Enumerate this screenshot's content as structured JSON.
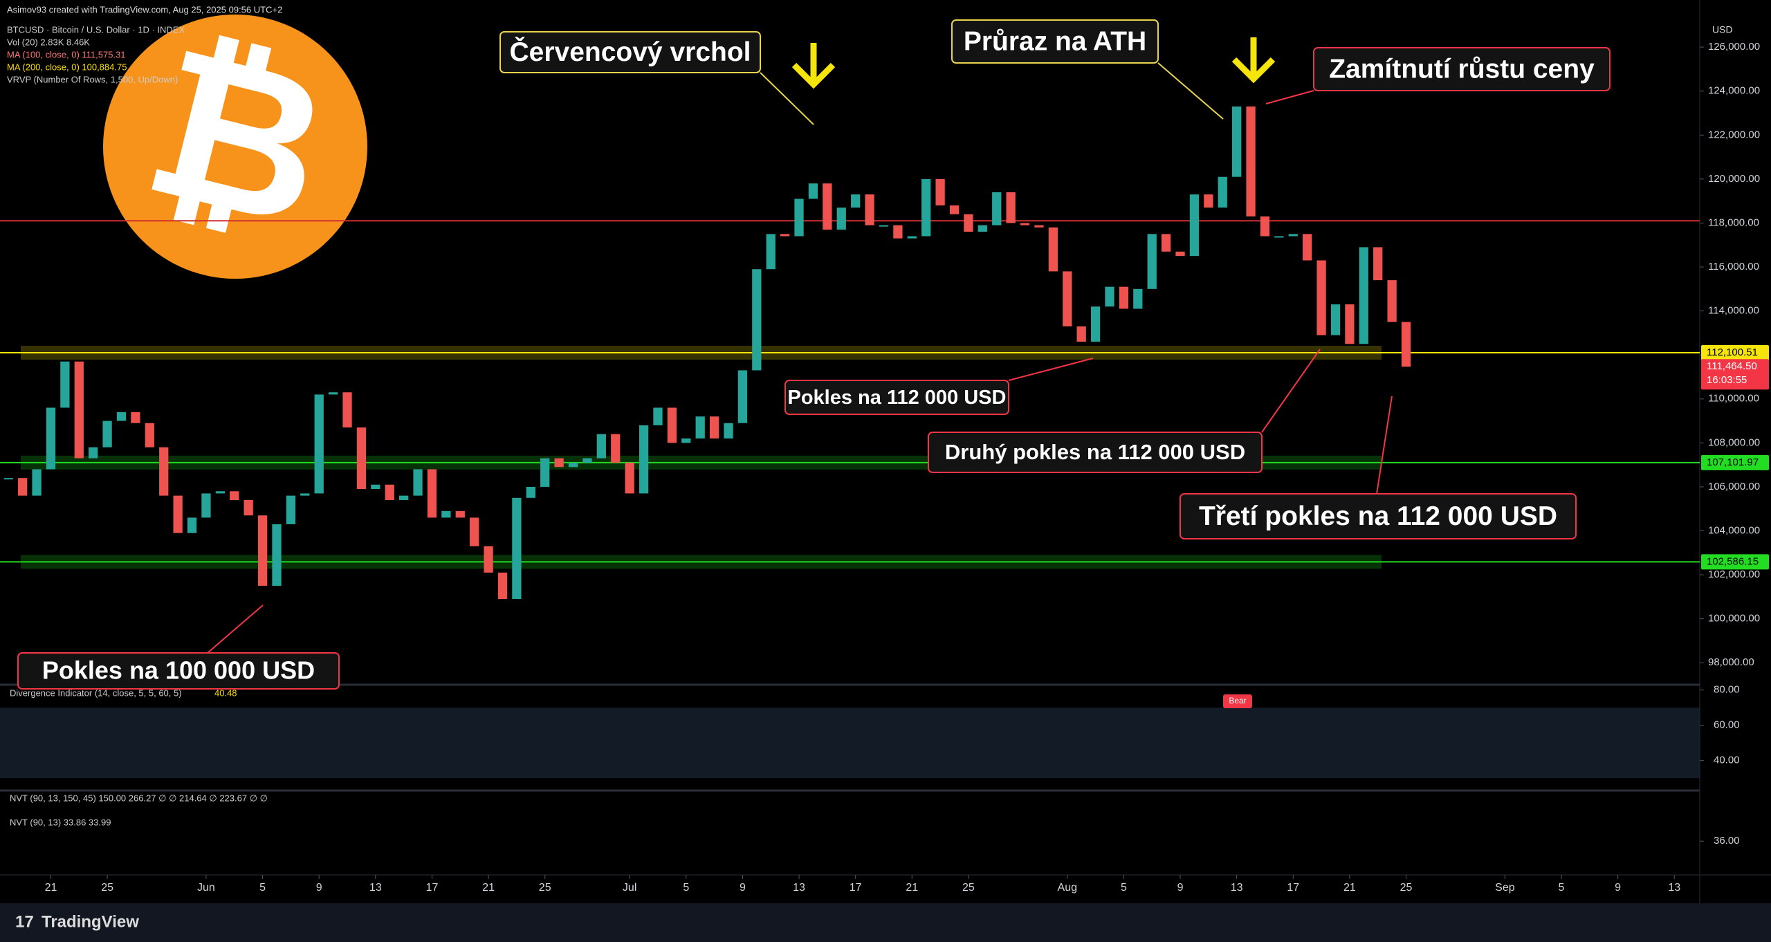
{
  "chart_data": {
    "type": "candlestick",
    "attribution": "Asimov93 created with TradingView.com, Aug 25, 2025 09:56 UTC+2",
    "legend_lines": [
      "BTCUSD · Bitcoin / U.S. Dollar · 1D · INDEX",
      "Vol (20) 2.83K 8.46K",
      "MA (100, close, 0) 111,575.31",
      "MA (200, close, 0) 100,884.75",
      "VRVP (Number Of Rows, 1,500, Up/Down)"
    ],
    "currency": "USD",
    "close": [
      106400,
      105600,
      106800,
      109600,
      111700,
      107300,
      107800,
      109000,
      109400,
      108900,
      107800,
      105600,
      103900,
      104600,
      105700,
      105800,
      105400,
      104700,
      101500,
      104300,
      105600,
      105700,
      110200,
      110300,
      108700,
      105900,
      106100,
      105400,
      105600,
      106800,
      104600,
      104900,
      104600,
      103300,
      102100,
      100900,
      105500,
      106000,
      107300,
      106900,
      107100,
      107300,
      108400,
      107100,
      105700,
      108800,
      109600,
      108000,
      108200,
      109200,
      108200,
      108900,
      111300,
      115900,
      117500,
      117400,
      119100,
      119800,
      117700,
      118700,
      119300,
      117900,
      117900,
      117300,
      117400,
      120000,
      118800,
      118400,
      117600,
      117900,
      119400,
      118000,
      117900,
      117800,
      115800,
      113300,
      112600,
      114200,
      115100,
      114100,
      115000,
      117500,
      116700,
      116500,
      119300,
      118700,
      120100,
      123300,
      118300,
      117400,
      117400,
      117500,
      116300,
      112900,
      114300,
      112500,
      116900,
      115400,
      113500,
      111464.5
    ],
    "up_color": "#26a69a",
    "down_color": "#ef5350",
    "xlim": [
      -0.6,
      119.8
    ],
    "xticks": [
      {
        "value": 3,
        "label": "21"
      },
      {
        "value": 7,
        "label": "25"
      },
      {
        "value": 14,
        "label": "Jun"
      },
      {
        "value": 18,
        "label": "5"
      },
      {
        "value": 22,
        "label": "9"
      },
      {
        "value": 26,
        "label": "13"
      },
      {
        "value": 30,
        "label": "17"
      },
      {
        "value": 34,
        "label": "21"
      },
      {
        "value": 38,
        "label": "25"
      },
      {
        "value": 44,
        "label": "Jul"
      },
      {
        "value": 48,
        "label": "5"
      },
      {
        "value": 52,
        "label": "9"
      },
      {
        "value": 56,
        "label": "13"
      },
      {
        "value": 60,
        "label": "17"
      },
      {
        "value": 64,
        "label": "21"
      },
      {
        "value": 68,
        "label": "25"
      },
      {
        "value": 75,
        "label": "Aug"
      },
      {
        "value": 79,
        "label": "5"
      },
      {
        "value": 83,
        "label": "9"
      },
      {
        "value": 87,
        "label": "13"
      },
      {
        "value": 91,
        "label": "17"
      },
      {
        "value": 95,
        "label": "21"
      },
      {
        "value": 99,
        "label": "25"
      },
      {
        "value": 106,
        "label": "Sep"
      },
      {
        "value": 110,
        "label": "5"
      },
      {
        "value": 114,
        "label": "9"
      },
      {
        "value": 118,
        "label": "13"
      }
    ],
    "ylim": [
      97000,
      127200
    ],
    "yticks": [
      {
        "value": 98000,
        "label": "98,000.00"
      },
      {
        "value": 100000,
        "label": "100,000.00"
      },
      {
        "value": 102000,
        "label": "102,000.00"
      },
      {
        "value": 104000,
        "label": "104,000.00"
      },
      {
        "value": 106000,
        "label": "106,000.00"
      },
      {
        "value": 108000,
        "label": "108,000.00"
      },
      {
        "value": 110000,
        "label": "110,000.00"
      },
      {
        "value": 112000,
        "label": "112,000.00"
      },
      {
        "value": 114000,
        "label": "114,000.00"
      },
      {
        "value": 116000,
        "label": "116,000.00"
      },
      {
        "value": 118000,
        "label": "118,000.00"
      },
      {
        "value": 120000,
        "label": "120,000.00"
      },
      {
        "value": 122000,
        "label": "122,000.00"
      },
      {
        "value": 124000,
        "label": "124,000.00"
      },
      {
        "value": 126000,
        "label": "126,000.00"
      }
    ],
    "levels": [
      {
        "value": 118100,
        "color": "#d32f2f"
      },
      {
        "value": 112100.51,
        "label": "112,100.51",
        "color": "#f5e50b"
      },
      {
        "value": 107101.97,
        "label": "107,101.97",
        "color": "#22dd22"
      },
      {
        "value": 102586.15,
        "label": "102,586.15",
        "color": "#22dd22"
      }
    ],
    "last_price": {
      "value": 111464.5,
      "label": "111,464.50",
      "countdown": "16:03:55",
      "color": "#f23645"
    },
    "annotations": [
      "Červencový vrchol",
      "Průraz na ATH",
      "Zamítnutí růstu ceny",
      "Pokles na 112 000 USD",
      "Druhý pokles na 112 000 USD",
      "Třetí pokles na 112 000 USD",
      "Pokles na 100 000 USD"
    ],
    "divergence": {
      "title": "Divergence Indicator (14, close, 5, 5, 60, 5)",
      "value": "40.48",
      "signal": "Bear",
      "ylim": [
        23,
        83
      ],
      "yticks": [
        {
          "value": 80,
          "label": "80.00"
        },
        {
          "value": 60,
          "label": "60.00"
        },
        {
          "value": 40,
          "label": "40.00"
        }
      ]
    },
    "nvt": {
      "title_1": "NVT (90, 13, 150, 45) 150.00 266.27 ∅ ∅ 214.64 ∅ 223.67 ∅ ∅",
      "title_2": "NVT (90, 13) 33.86 33.99",
      "ylim": [
        32,
        42
      ],
      "yticks": [
        {
          "value": 36,
          "label": "36.00"
        }
      ]
    },
    "watermark": "TradingView"
  }
}
